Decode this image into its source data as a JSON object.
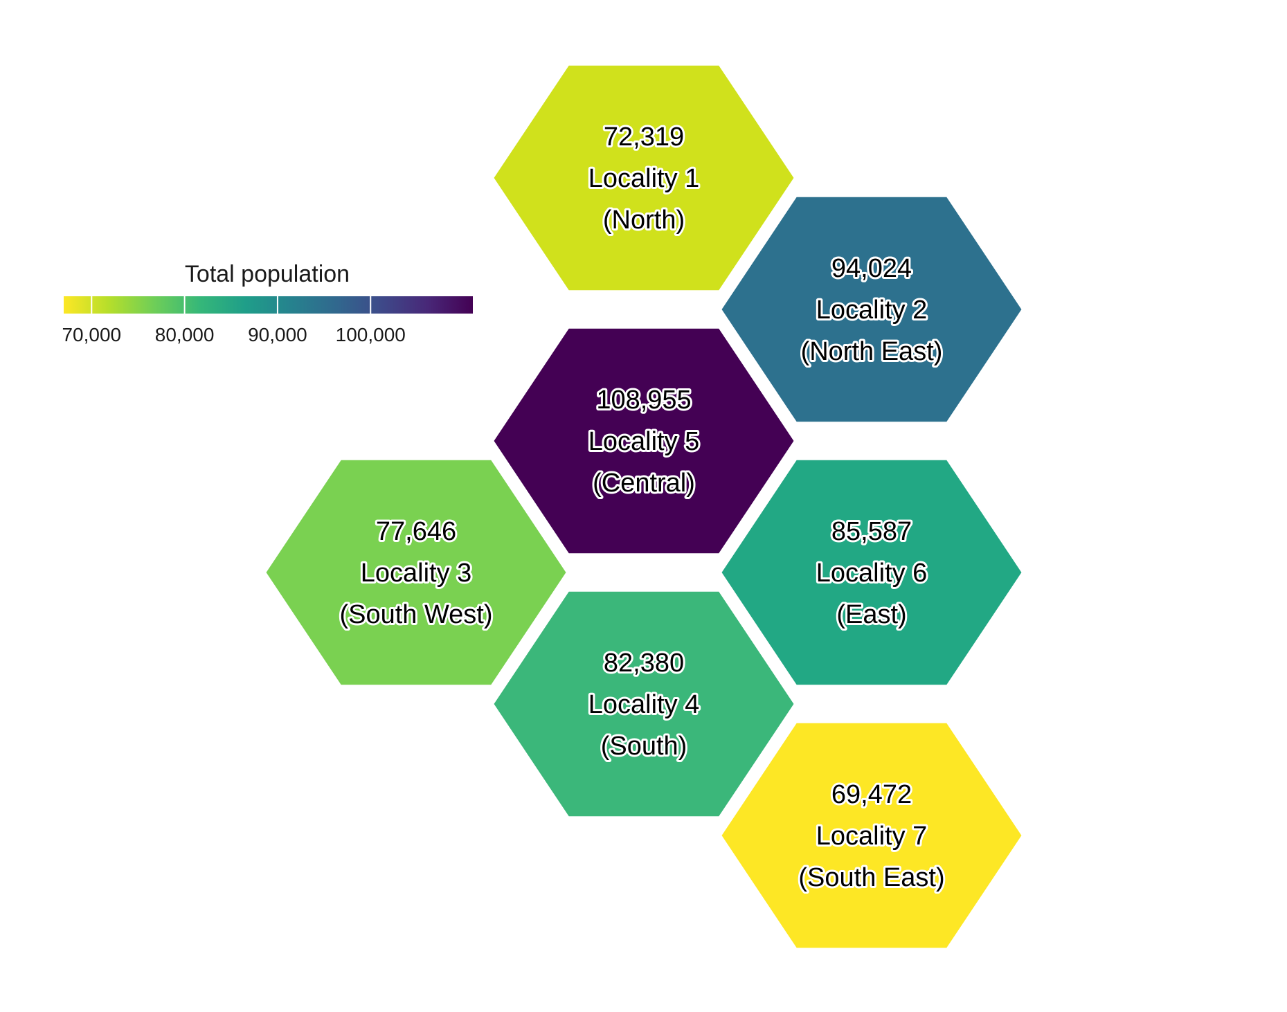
{
  "legend": {
    "title": "Total population",
    "min": 67000,
    "max": 111000,
    "ticks": [
      {
        "value": 70000,
        "label": "70,000"
      },
      {
        "value": 80000,
        "label": "80,000"
      },
      {
        "value": 90000,
        "label": "90,000"
      },
      {
        "value": 100000,
        "label": "100,000"
      }
    ],
    "colorscale": [
      "#fde725",
      "#b5de2b",
      "#6ece58",
      "#35b779",
      "#1f9e89",
      "#26828e",
      "#31688e",
      "#3e4989",
      "#482878",
      "#440154"
    ]
  },
  "chart_data": {
    "type": "heatmap",
    "value_name": "Total population",
    "cells": [
      {
        "id": 1,
        "name": "Locality 1",
        "region": "(North)",
        "value": 72319,
        "value_label": "72,319",
        "color": "#d0e11c",
        "col": 1,
        "row": 0
      },
      {
        "id": 2,
        "name": "Locality 2",
        "region": "(North East)",
        "value": 94024,
        "value_label": "94,024",
        "color": "#2d718e",
        "col": 2,
        "row": 0.5
      },
      {
        "id": 5,
        "name": "Locality 5",
        "region": "(Central)",
        "value": 108955,
        "value_label": "108,955",
        "color": "#440154",
        "col": 1,
        "row": 1
      },
      {
        "id": 3,
        "name": "Locality 3",
        "region": "(South West)",
        "value": 77646,
        "value_label": "77,646",
        "color": "#7ad151",
        "col": 0,
        "row": 1.5
      },
      {
        "id": 6,
        "name": "Locality 6",
        "region": "(East)",
        "value": 85587,
        "value_label": "85,587",
        "color": "#22a884",
        "col": 2,
        "row": 1.5
      },
      {
        "id": 4,
        "name": "Locality 4",
        "region": "(South)",
        "value": 82380,
        "value_label": "82,380",
        "color": "#3bb77a",
        "col": 1,
        "row": 2
      },
      {
        "id": 7,
        "name": "Locality 7",
        "region": "(South East)",
        "value": 69472,
        "value_label": "69,472",
        "color": "#fde725",
        "col": 2,
        "row": 2.5
      }
    ]
  }
}
